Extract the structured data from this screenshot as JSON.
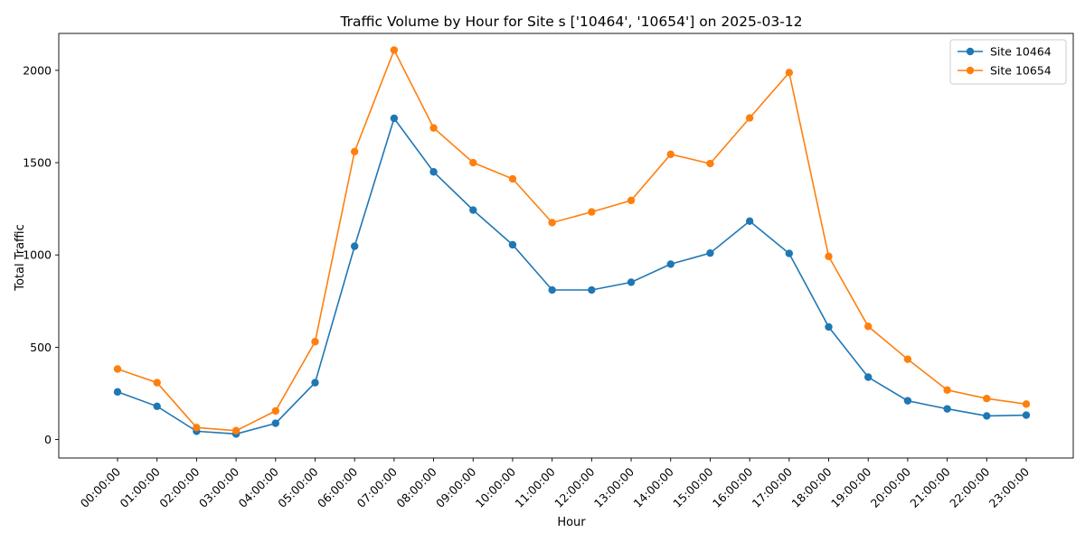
{
  "chart_data": {
    "type": "line",
    "title": "Traffic Volume by Hour for Site s ['10464', '10654'] on 2025-03-12",
    "xlabel": "Hour",
    "ylabel": "Total Traffic",
    "x": [
      "00:00:00",
      "01:00:00",
      "02:00:00",
      "03:00:00",
      "04:00:00",
      "05:00:00",
      "06:00:00",
      "07:00:00",
      "08:00:00",
      "09:00:00",
      "10:00:00",
      "11:00:00",
      "12:00:00",
      "13:00:00",
      "14:00:00",
      "15:00:00",
      "16:00:00",
      "17:00:00",
      "18:00:00",
      "19:00:00",
      "20:00:00",
      "21:00:00",
      "22:00:00",
      "23:00:00"
    ],
    "ylim": [
      -100,
      2200
    ],
    "yticks": [
      0,
      500,
      1000,
      1500,
      2000
    ],
    "grid": false,
    "legend_position": "top-right",
    "series": [
      {
        "name": "Site 10464",
        "color": "#1f77b4",
        "values": [
          258,
          180,
          45,
          30,
          88,
          308,
          1047,
          1740,
          1450,
          1243,
          1055,
          810,
          810,
          852,
          950,
          1010,
          1183,
          1008,
          610,
          338,
          210,
          166,
          128,
          132
        ]
      },
      {
        "name": "Site 10654",
        "color": "#ff7f0e",
        "values": [
          382,
          308,
          65,
          48,
          155,
          530,
          1560,
          2110,
          1688,
          1500,
          1412,
          1175,
          1233,
          1295,
          1545,
          1495,
          1742,
          1988,
          992,
          613,
          435,
          268,
          222,
          192
        ]
      }
    ]
  }
}
